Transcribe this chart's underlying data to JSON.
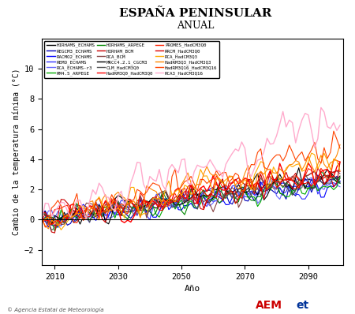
{
  "title": "ESPAÑA PENINSULAR",
  "subtitle": "ANUAL",
  "ylabel": "Cambio de la temperatura mínima (°C)",
  "xlabel": "Año",
  "xlim": [
    2006,
    2101
  ],
  "ylim": [
    -3,
    12
  ],
  "yticks": [
    -2,
    0,
    2,
    4,
    6,
    8,
    10
  ],
  "xticks": [
    2010,
    2030,
    2050,
    2070,
    2090
  ],
  "hline_y": 0,
  "copyright_text": "© Agencia Estatal de Meteorología",
  "series": [
    {
      "label": "HIRHAMS_ECHAMS",
      "color": "#000000",
      "lw": 0.8,
      "alpha": 1.0,
      "trend": 2.8,
      "noise": 0.55,
      "seed": 1
    },
    {
      "label": "REGCM3_ECHAMS",
      "color": "#0000bb",
      "lw": 0.8,
      "alpha": 1.0,
      "trend": 2.5,
      "noise": 0.5,
      "seed": 2
    },
    {
      "label": "RACMO2_ECHAMS",
      "color": "#0000ff",
      "lw": 0.8,
      "alpha": 1.0,
      "trend": 2.6,
      "noise": 0.5,
      "seed": 3
    },
    {
      "label": "REMO_ECHAMS",
      "color": "#3333ff",
      "lw": 0.8,
      "alpha": 1.0,
      "trend": 2.4,
      "noise": 0.5,
      "seed": 4
    },
    {
      "label": "RCA_ECHAMS-r3",
      "color": "#6666ff",
      "lw": 0.8,
      "alpha": 1.0,
      "trend": 2.5,
      "noise": 0.5,
      "seed": 5
    },
    {
      "label": "RM4.5_ARPEGE",
      "color": "#00aa00",
      "lw": 0.8,
      "alpha": 1.0,
      "trend": 2.3,
      "noise": 0.5,
      "seed": 6
    },
    {
      "label": "HIRHAMS_ARPEGE",
      "color": "#008800",
      "lw": 0.8,
      "alpha": 1.0,
      "trend": 2.6,
      "noise": 0.52,
      "seed": 7
    },
    {
      "label": "HIRHAM_BCM",
      "color": "#cc0000",
      "lw": 0.8,
      "alpha": 1.0,
      "trend": 3.2,
      "noise": 0.55,
      "seed": 8
    },
    {
      "label": "RCA_BCM",
      "color": "#884444",
      "lw": 0.8,
      "alpha": 1.0,
      "trend": 3.0,
      "noise": 0.52,
      "seed": 9
    },
    {
      "label": "MRCC4.2.1_CGCM3",
      "color": "#000000",
      "lw": 0.8,
      "alpha": 1.0,
      "trend": 2.9,
      "noise": 0.5,
      "seed": 10
    },
    {
      "label": "CLM_HadCM3Q0",
      "color": "#555555",
      "lw": 0.8,
      "alpha": 1.0,
      "trend": 2.7,
      "noise": 0.5,
      "seed": 11
    },
    {
      "label": "HadRM3Q0_HadCM3Q0",
      "color": "#ff0000",
      "lw": 1.0,
      "alpha": 1.0,
      "trend": 3.5,
      "noise": 0.6,
      "seed": 12
    },
    {
      "label": "PROMES_HadCM3Q0",
      "color": "#ff2200",
      "lw": 0.8,
      "alpha": 1.0,
      "trend": 3.3,
      "noise": 0.58,
      "seed": 13
    },
    {
      "label": "RRCM_HadCM3Q0",
      "color": "#dd0000",
      "lw": 0.8,
      "alpha": 1.0,
      "trend": 3.1,
      "noise": 0.55,
      "seed": 14
    },
    {
      "label": "RCA_HadCM3Q3",
      "color": "#ffaa00",
      "lw": 0.8,
      "alpha": 1.0,
      "trend": 4.0,
      "noise": 0.65,
      "seed": 15
    },
    {
      "label": "HadRM3Q3_HadCM3Q3",
      "color": "#ff8800",
      "lw": 0.8,
      "alpha": 1.0,
      "trend": 4.2,
      "noise": 0.65,
      "seed": 16
    },
    {
      "label": "HadRM3Q16_HadCM3Q16",
      "color": "#ff4400",
      "lw": 0.8,
      "alpha": 1.0,
      "trend": 4.8,
      "noise": 0.7,
      "seed": 17
    },
    {
      "label": "RCA3_HadCM3Q16",
      "color": "#ffaacc",
      "lw": 1.0,
      "alpha": 1.0,
      "trend": 6.5,
      "noise": 0.9,
      "seed": 18
    }
  ],
  "legend_cols": 3,
  "background_color": "#ffffff",
  "plot_bg_color": "#ffffff",
  "start_year": 2006,
  "end_year": 2100
}
